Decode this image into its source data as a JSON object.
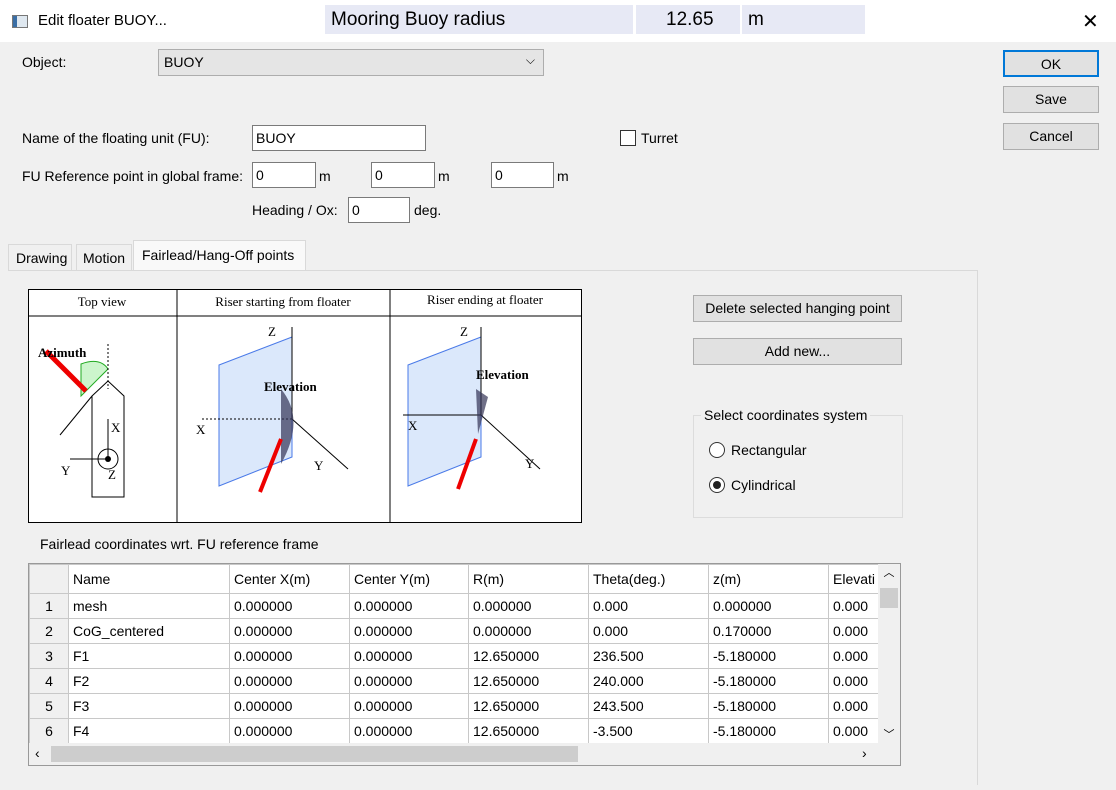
{
  "window": {
    "title": "Edit floater BUOY...",
    "close": "✕"
  },
  "overlay": {
    "label": "Mooring Buoy radius",
    "value": "12.65",
    "unit": "m"
  },
  "object": {
    "label": "Object:",
    "value": "BUOY"
  },
  "buttons": {
    "ok": "OK",
    "save": "Save",
    "cancel": "Cancel",
    "delete": "Delete selected hanging point",
    "add": "Add new..."
  },
  "fu": {
    "name_label": "Name of the floating unit (FU):",
    "name": "BUOY",
    "turret": "Turret",
    "ref_label": "FU Reference point in global frame:",
    "x": "0",
    "y": "0",
    "z": "0",
    "unit": "m",
    "heading_label": "Heading / Ox:",
    "heading": "0",
    "heading_unit": "deg."
  },
  "tabs": [
    "Drawing",
    "Motion",
    "Fairlead/Hang-Off points"
  ],
  "diagram": {
    "top_view": "Top view",
    "starting": "Riser starting from floater",
    "ending": "Riser ending at floater",
    "azimuth": "Azimuth",
    "elevation": "Elevation",
    "x": "X",
    "y": "Y",
    "z": "Z"
  },
  "coords": {
    "title": "Select coordinates system",
    "options": [
      "Rectangular",
      "Cylindrical"
    ],
    "selected": "Cylindrical"
  },
  "table": {
    "caption": "Fairlead coordinates wrt. FU reference frame",
    "columns": [
      "Name",
      "Center X(m)",
      "Center Y(m)",
      "R(m)",
      "Theta(deg.)",
      "z(m)",
      "Elevati"
    ],
    "rows": [
      {
        "n": "1",
        "c": [
          "mesh",
          "0.000000",
          "0.000000",
          "0.000000",
          "0.000",
          "0.000000",
          "0.000"
        ]
      },
      {
        "n": "2",
        "c": [
          "CoG_centered",
          "0.000000",
          "0.000000",
          "0.000000",
          "0.000",
          "0.170000",
          "0.000"
        ]
      },
      {
        "n": "3",
        "c": [
          "F1",
          "0.000000",
          "0.000000",
          "12.650000",
          "236.500",
          "-5.180000",
          "0.000"
        ]
      },
      {
        "n": "4",
        "c": [
          "F2",
          "0.000000",
          "0.000000",
          "12.650000",
          "240.000",
          "-5.180000",
          "0.000"
        ]
      },
      {
        "n": "5",
        "c": [
          "F3",
          "0.000000",
          "0.000000",
          "12.650000",
          "243.500",
          "-5.180000",
          "0.000"
        ]
      },
      {
        "n": "6",
        "c": [
          "F4",
          "0.000000",
          "0.000000",
          "12.650000",
          "-3.500",
          "-5.180000",
          "0.000"
        ]
      }
    ]
  }
}
